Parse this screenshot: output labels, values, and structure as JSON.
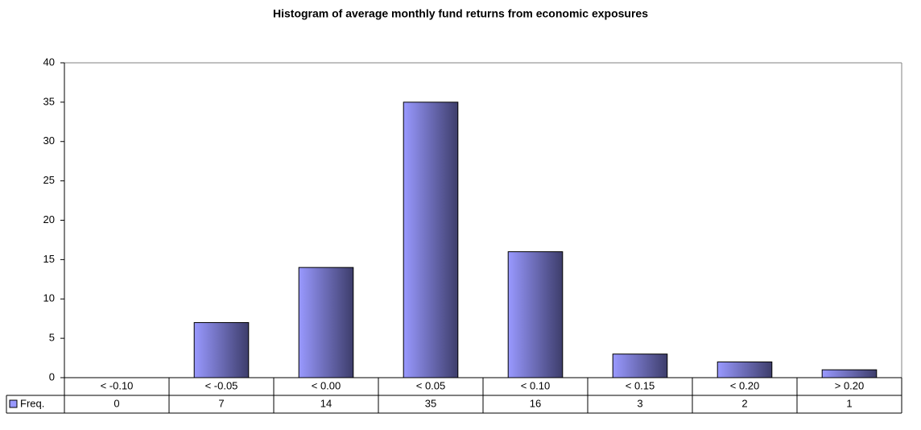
{
  "chart_data": {
    "type": "bar",
    "title": "Histogram of average monthly fund returns from economic exposures",
    "categories": [
      "< -0.10",
      "< -0.05",
      "< 0.00",
      "< 0.05",
      "< 0.10",
      "< 0.15",
      "< 0.20",
      "> 0.20"
    ],
    "series": [
      {
        "name": "Freq.",
        "color": "#9999ff",
        "values": [
          0,
          7,
          14,
          35,
          16,
          3,
          2,
          1
        ]
      }
    ],
    "ylim": [
      0,
      40
    ],
    "yticks": [
      0,
      5,
      10,
      15,
      20,
      25,
      30,
      35,
      40
    ],
    "grid": false,
    "data_table": true
  }
}
